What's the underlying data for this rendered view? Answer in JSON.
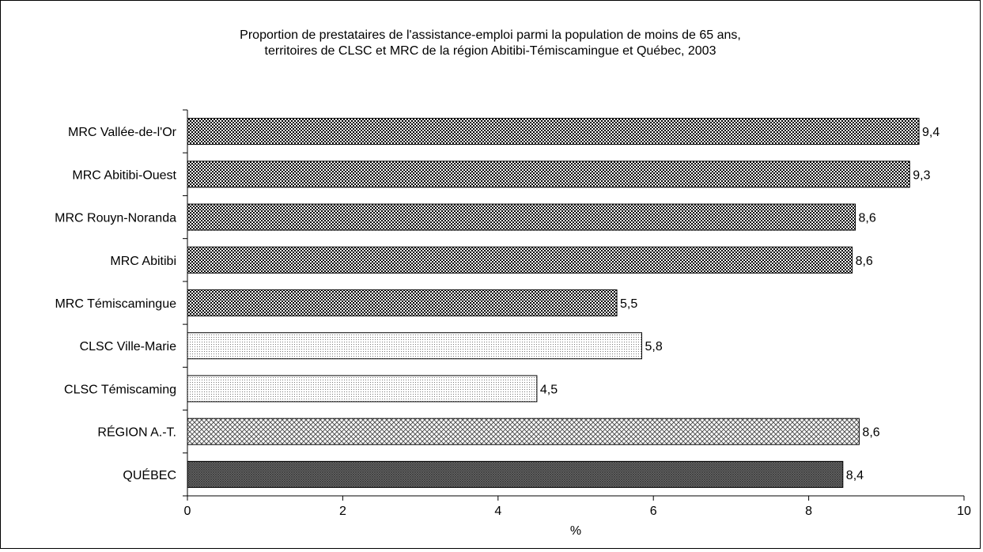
{
  "chart_data": {
    "type": "bar",
    "orientation": "horizontal",
    "title_lines": [
      "Proportion de prestataires de l'assistance-emploi parmi la population de moins de 65 ans,",
      "territoires de CLSC et MRC de la région Abitibi-Témiscamingue et Québec, 2003"
    ],
    "categories": [
      "MRC Vallée-de-l'Or",
      "MRC Abitibi-Ouest",
      "MRC Rouyn-Noranda",
      "MRC Abitibi",
      "MRC Témiscamingue",
      "CLSC Ville-Marie",
      "CLSC Témiscaming",
      "RÉGION A.-T.",
      "QUÉBEC"
    ],
    "values": [
      9.42,
      9.3,
      8.6,
      8.56,
      5.53,
      5.85,
      4.5,
      8.65,
      8.44
    ],
    "value_labels": [
      "9,4",
      "9,3",
      "8,6",
      "8,6",
      "5,5",
      "5,8",
      "4,5",
      "8,6",
      "8,4"
    ],
    "patterns": [
      "mrc",
      "mrc",
      "mrc",
      "mrc",
      "mrc",
      "clsc",
      "clsc",
      "region",
      "quebec"
    ],
    "xlabel": "%",
    "xlim": [
      0,
      10
    ],
    "xticks": [
      0,
      2,
      4,
      6,
      8,
      10
    ],
    "xtick_labels": [
      "0",
      "2",
      "4",
      "6",
      "8",
      "10"
    ],
    "grid": false,
    "legend": "none"
  }
}
